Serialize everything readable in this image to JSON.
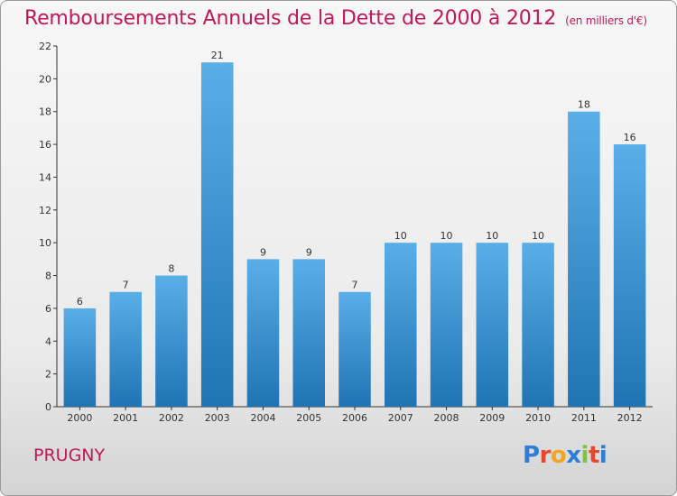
{
  "header": {
    "title": "Remboursements Annuels de la Dette de 2000 à 2012",
    "unit": "(en milliers d'€)"
  },
  "footer": {
    "commune": "PRUGNY",
    "logo": "Proxiti"
  },
  "colors": {
    "title": "#c2185b",
    "bar_top": "#5aaee8",
    "bar_bottom": "#1f74b4",
    "logo_letters": [
      "#2e7dd6",
      "#e8462e",
      "#f2a51f",
      "#2e7dd6",
      "#7cc242",
      "#e8462e",
      "#2e7dd6"
    ]
  },
  "chart_data": {
    "type": "bar",
    "title": "Remboursements Annuels de la Dette de 2000 à 2012",
    "subtitle": "(en milliers d'€)",
    "categories": [
      "2000",
      "2001",
      "2002",
      "2003",
      "2004",
      "2005",
      "2006",
      "2007",
      "2008",
      "2009",
      "2010",
      "2011",
      "2012"
    ],
    "values": [
      6,
      7,
      8,
      21,
      9,
      9,
      7,
      10,
      10,
      10,
      10,
      18,
      16
    ],
    "data_labels": [
      "6",
      "7",
      "8",
      "21",
      "9",
      "9",
      "7",
      "10",
      "10",
      "10",
      "10",
      "18",
      "16"
    ],
    "ylim": [
      0,
      22
    ],
    "yticks": [
      "0",
      "2",
      "4",
      "6",
      "8",
      "10",
      "12",
      "14",
      "16",
      "18",
      "20",
      "22"
    ],
    "ytick_values": [
      0,
      2,
      4,
      6,
      8,
      10,
      12,
      14,
      16,
      18,
      20,
      22
    ],
    "grid": false,
    "legend": "none"
  }
}
